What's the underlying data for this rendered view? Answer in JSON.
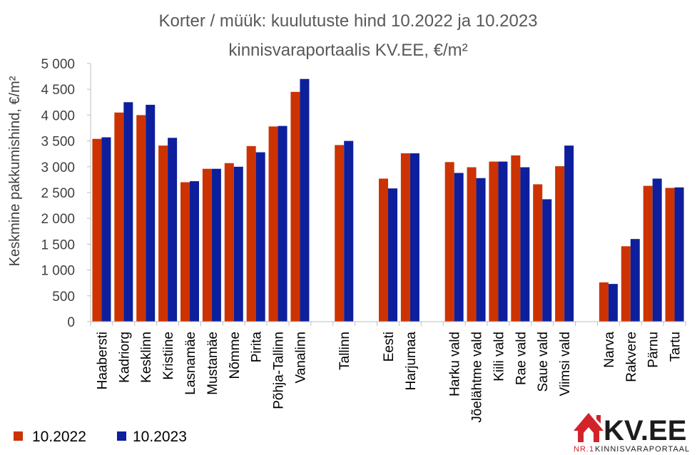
{
  "chart_data": {
    "type": "bar",
    "title": "Korter / müük: kuulutuste hind 10.2022 ja 10.2023",
    "subtitle": "kinnisvaraportaalis KV.EE, €/m²",
    "ylabel": "Keskmine pakkumishind, €/m²",
    "xlabel": "",
    "ylim": [
      0,
      5000
    ],
    "yticks": [
      0,
      500,
      1000,
      1500,
      2000,
      2500,
      3000,
      3500,
      4000,
      4500,
      5000
    ],
    "ytick_labels": [
      "0",
      "500",
      "1 000",
      "1 500",
      "2 000",
      "2 500",
      "3 000",
      "3 500",
      "4 000",
      "4 500",
      "5 000"
    ],
    "grid": false,
    "legend_position": "bottom-left",
    "categories": [
      "Haabersti",
      "Kadriorg",
      "Kesklinn",
      "Kristiine",
      "Lasnamäe",
      "Mustamäe",
      "Nõmme",
      "Pirita",
      "Põhja-Tallinn",
      "Vanalinn",
      "",
      "Tallinn",
      "",
      "Eesti",
      "Harjumaa",
      "",
      "Harku vald",
      "Jõelähtme vald",
      "Kiili vald",
      "Rae vald",
      "Saue vald",
      "Viimsi vald",
      "",
      "Narva",
      "Rakvere",
      "Pärnu",
      "Tartu"
    ],
    "series": [
      {
        "name": "10.2022",
        "color": "#cc3300",
        "values": [
          3540,
          4050,
          4000,
          3410,
          2700,
          2960,
          3070,
          3400,
          3780,
          4450,
          null,
          3420,
          null,
          2770,
          3260,
          null,
          3090,
          2990,
          3100,
          3220,
          2660,
          3010,
          null,
          760,
          1460,
          2630,
          2590
        ]
      },
      {
        "name": "10.2023",
        "color": "#0d1f9c",
        "values": [
          3570,
          4250,
          4200,
          3560,
          2720,
          2960,
          3000,
          3280,
          3790,
          4700,
          null,
          3500,
          null,
          2580,
          3260,
          null,
          2880,
          2780,
          3100,
          2990,
          2370,
          3410,
          null,
          730,
          1600,
          2770,
          2600
        ]
      }
    ]
  },
  "logo": {
    "text": "KV.EE",
    "tagline_prefix": "NR.1",
    "tagline": "KINNISVARAPORTAAL",
    "icon": "house-logo-icon",
    "color": "#d2232a"
  }
}
